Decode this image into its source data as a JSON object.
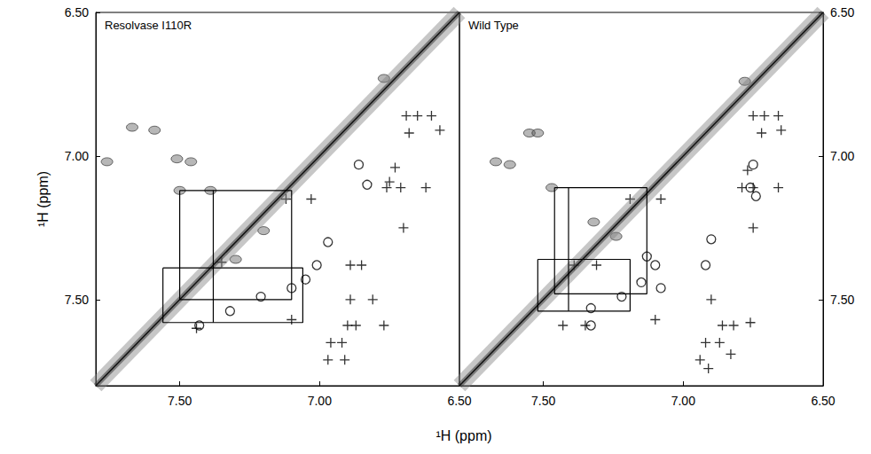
{
  "chart_data": [
    {
      "type": "scatter",
      "title": "Resolvase I110R",
      "xlabel": "¹H (ppm)",
      "ylabel": "¹H (ppm)",
      "xlim": [
        7.8,
        6.5
      ],
      "ylim": [
        7.8,
        6.5
      ],
      "xticks": [
        {
          "value": 7.5,
          "label": "7.50"
        },
        {
          "value": 7,
          "label": "7.00"
        },
        {
          "value": 6.5,
          "label": "6.50"
        }
      ],
      "yticks": [
        {
          "value": 7.5,
          "label": "7.50"
        },
        {
          "value": 7,
          "label": "7.00"
        },
        {
          "value": 6.5,
          "label": "6.50"
        }
      ],
      "grid": false,
      "diagonal": [
        [
          7.8,
          7.8
        ],
        [
          6.5,
          6.5
        ]
      ],
      "peaks": [
        [
          7.67,
          6.9
        ],
        [
          7.59,
          6.91
        ],
        [
          7.76,
          7.02
        ],
        [
          7.51,
          7.01
        ],
        [
          7.46,
          7.02
        ],
        [
          7.5,
          7.12
        ],
        [
          7.39,
          7.12
        ],
        [
          6.77,
          6.73
        ],
        [
          7.2,
          7.26
        ],
        [
          7.3,
          7.36
        ]
      ],
      "boxes": [
        [
          7.5,
          7.12,
          7.1,
          7.5
        ],
        [
          7.56,
          7.39,
          7.06,
          7.58
        ]
      ],
      "segments": [
        [
          7.38,
          7.12,
          7.38,
          7.58
        ]
      ],
      "series": [
        {
          "marker": "plus",
          "color": "#000000",
          "values": [
            [
              6.69,
              6.86
            ],
            [
              6.65,
              6.86
            ],
            [
              6.6,
              6.86
            ],
            [
              6.68,
              6.92
            ],
            [
              6.57,
              6.91
            ],
            [
              6.73,
              7.04
            ],
            [
              6.75,
              7.09
            ],
            [
              6.76,
              7.11
            ],
            [
              6.71,
              7.11
            ],
            [
              6.62,
              7.11
            ],
            [
              6.7,
              7.25
            ],
            [
              7.03,
              7.15
            ],
            [
              7.12,
              7.15
            ],
            [
              7.35,
              7.37
            ],
            [
              6.89,
              7.38
            ],
            [
              6.85,
              7.38
            ],
            [
              6.89,
              7.5
            ],
            [
              6.81,
              7.5
            ],
            [
              6.77,
              7.59
            ],
            [
              6.87,
              7.59
            ],
            [
              6.9,
              7.59
            ],
            [
              6.96,
              7.65
            ],
            [
              6.92,
              7.65
            ],
            [
              6.97,
              7.71
            ],
            [
              6.91,
              7.71
            ],
            [
              7.1,
              7.57
            ],
            [
              7.44,
              7.6
            ]
          ]
        },
        {
          "marker": "circle",
          "color": "#000000",
          "values": [
            [
              6.86,
              7.03
            ],
            [
              6.83,
              7.1
            ],
            [
              6.97,
              7.3
            ],
            [
              7.01,
              7.38
            ],
            [
              7.05,
              7.43
            ],
            [
              7.1,
              7.46
            ],
            [
              7.21,
              7.49
            ],
            [
              7.32,
              7.54
            ],
            [
              7.43,
              7.59
            ]
          ]
        }
      ]
    },
    {
      "type": "scatter",
      "title": "Wild Type",
      "xlim": [
        7.8,
        6.5
      ],
      "ylim": [
        7.8,
        6.5
      ],
      "xticks": [
        {
          "value": 7.5,
          "label": "7.50"
        },
        {
          "value": 7,
          "label": "7.00"
        },
        {
          "value": 6.5,
          "label": "6.50"
        }
      ],
      "yticks": [
        {
          "value": 7.5,
          "label": "7.50"
        },
        {
          "value": 7,
          "label": "7.00"
        },
        {
          "value": 6.5,
          "label": "6.50"
        }
      ],
      "grid": false,
      "diagonal": [
        [
          7.8,
          7.8
        ],
        [
          6.5,
          6.5
        ]
      ],
      "peaks": [
        [
          7.67,
          7.02
        ],
        [
          7.62,
          7.03
        ],
        [
          7.55,
          6.92
        ],
        [
          7.52,
          6.92
        ],
        [
          7.47,
          7.11
        ],
        [
          7.32,
          7.23
        ],
        [
          6.78,
          6.74
        ],
        [
          7.24,
          7.28
        ]
      ],
      "boxes": [
        [
          7.46,
          7.11,
          7.13,
          7.48
        ],
        [
          7.52,
          7.36,
          7.19,
          7.54
        ]
      ],
      "segments": [
        [
          7.41,
          7.11,
          7.41,
          7.54
        ]
      ],
      "series": [
        {
          "marker": "plus",
          "color": "#000000",
          "values": [
            [
              6.75,
              6.86
            ],
            [
              6.71,
              6.86
            ],
            [
              6.66,
              6.86
            ],
            [
              6.72,
              6.92
            ],
            [
              6.65,
              6.91
            ],
            [
              6.77,
              7.05
            ],
            [
              6.79,
              7.11
            ],
            [
              6.75,
              7.11
            ],
            [
              6.66,
              7.11
            ],
            [
              6.75,
              7.25
            ],
            [
              7.08,
              7.15
            ],
            [
              7.19,
              7.15
            ],
            [
              7.39,
              7.38
            ],
            [
              7.31,
              7.38
            ],
            [
              6.9,
              7.5
            ],
            [
              7.1,
              7.57
            ],
            [
              7.43,
              7.59
            ],
            [
              7.35,
              7.59
            ],
            [
              6.76,
              7.58
            ],
            [
              6.82,
              7.59
            ],
            [
              6.86,
              7.59
            ],
            [
              6.92,
              7.65
            ],
            [
              6.87,
              7.65
            ],
            [
              6.94,
              7.71
            ],
            [
              6.91,
              7.74
            ],
            [
              6.83,
              7.69
            ]
          ]
        },
        {
          "marker": "circle",
          "color": "#000000",
          "values": [
            [
              6.75,
              7.03
            ],
            [
              6.76,
              7.11
            ],
            [
              6.74,
              7.14
            ],
            [
              6.9,
              7.29
            ],
            [
              6.92,
              7.38
            ],
            [
              7.1,
              7.38
            ],
            [
              7.15,
              7.44
            ],
            [
              7.08,
              7.46
            ],
            [
              7.22,
              7.49
            ],
            [
              7.33,
              7.53
            ],
            [
              7.33,
              7.59
            ],
            [
              7.13,
              7.35
            ]
          ]
        }
      ]
    }
  ]
}
